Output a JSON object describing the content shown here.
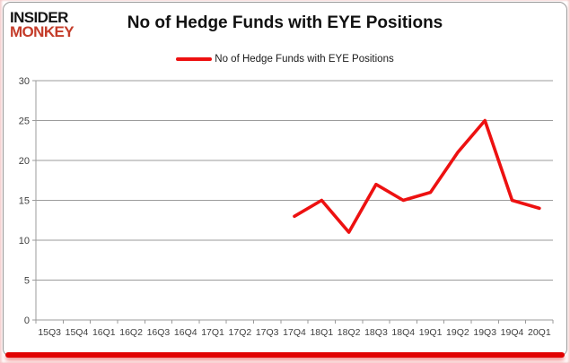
{
  "logo": {
    "line1": "INSIDER",
    "line2": "MONKEY",
    "line2_color": "#c43c2a"
  },
  "title": "No of Hedge Funds with EYE Positions",
  "legend": {
    "label": "No of Hedge Funds with EYE Positions",
    "swatch_color": "#ed1111"
  },
  "chart_data": {
    "type": "line",
    "title": "No of Hedge Funds with EYE Positions",
    "categories": [
      "15Q3",
      "15Q4",
      "16Q1",
      "16Q2",
      "16Q3",
      "16Q4",
      "17Q1",
      "17Q2",
      "17Q3",
      "17Q4",
      "18Q1",
      "18Q2",
      "18Q3",
      "18Q4",
      "19Q1",
      "19Q2",
      "19Q3",
      "19Q4",
      "20Q1"
    ],
    "series": [
      {
        "name": "No of Hedge Funds with EYE Positions",
        "color": "#ed1111",
        "values": [
          null,
          null,
          null,
          null,
          null,
          null,
          null,
          null,
          null,
          13,
          15,
          11,
          17,
          15,
          16,
          21,
          25,
          15,
          14
        ]
      }
    ],
    "xlabel": "",
    "ylabel": "",
    "ylim": [
      0,
      30
    ],
    "yticks": [
      0,
      5,
      10,
      15,
      20,
      25,
      30
    ],
    "grid": true,
    "legend_position": "top-center"
  },
  "colors": {
    "line_red": "#ed1111",
    "bottom_bar_red": "#e10000",
    "gridline_gray": "#9b9b9b",
    "axis_text": "#404040",
    "frame_gray": "#9c9c9c"
  }
}
